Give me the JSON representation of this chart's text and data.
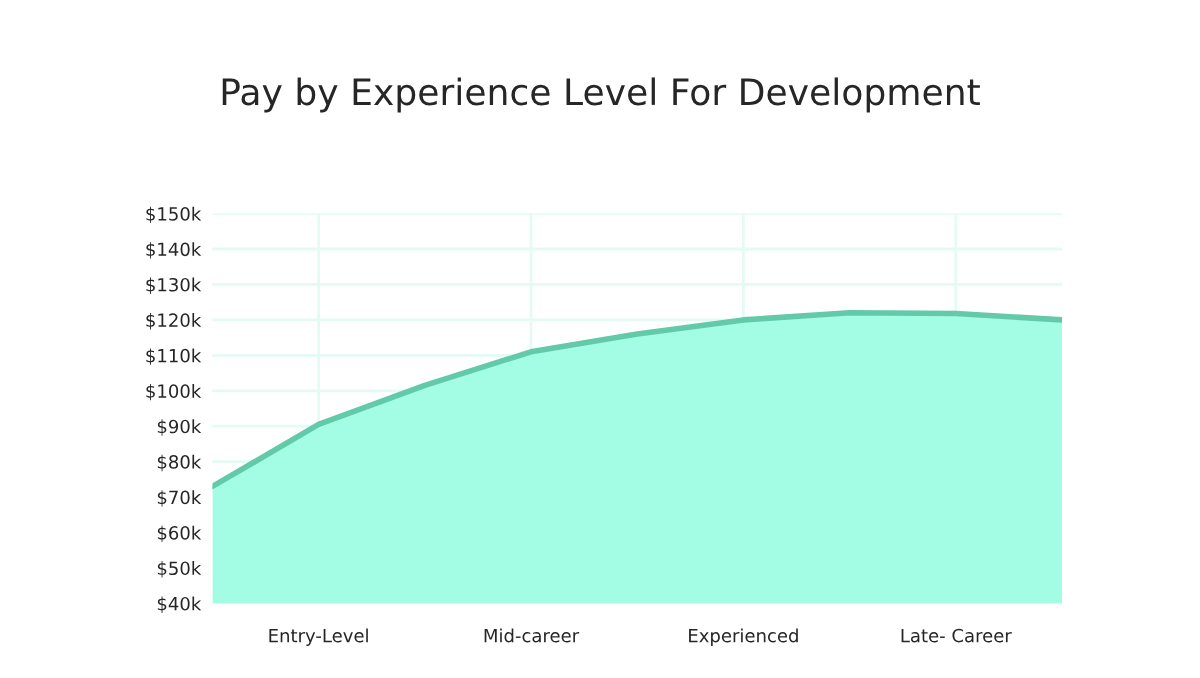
{
  "chart_data": {
    "type": "area",
    "title": "Pay by Experience Level For Development",
    "categories": [
      null,
      "Entry-Level",
      null,
      "Mid-career",
      null,
      "Experienced",
      null,
      "Late- Career",
      null
    ],
    "series": [
      {
        "color": "#a3fce4",
        "values": [
          73,
          90.5,
          101.5,
          111,
          116,
          120,
          122,
          121.8,
          120
        ]
      }
    ],
    "ylim": [
      40,
      150
    ],
    "yticks": [
      {
        "value": 40,
        "label": "$40k"
      },
      {
        "value": 50,
        "label": "$50k"
      },
      {
        "value": 60,
        "label": "$60k"
      },
      {
        "value": 70,
        "label": "$70k"
      },
      {
        "value": 80,
        "label": "$80k"
      },
      {
        "value": 90,
        "label": "$90k"
      },
      {
        "value": 100,
        "label": "$100k"
      },
      {
        "value": 110,
        "label": "$110k"
      },
      {
        "value": 120,
        "label": "$120k"
      },
      {
        "value": 130,
        "label": "$130k"
      },
      {
        "value": 140,
        "label": "$140k"
      },
      {
        "value": 150,
        "label": "$150k"
      }
    ],
    "grid": true
  }
}
